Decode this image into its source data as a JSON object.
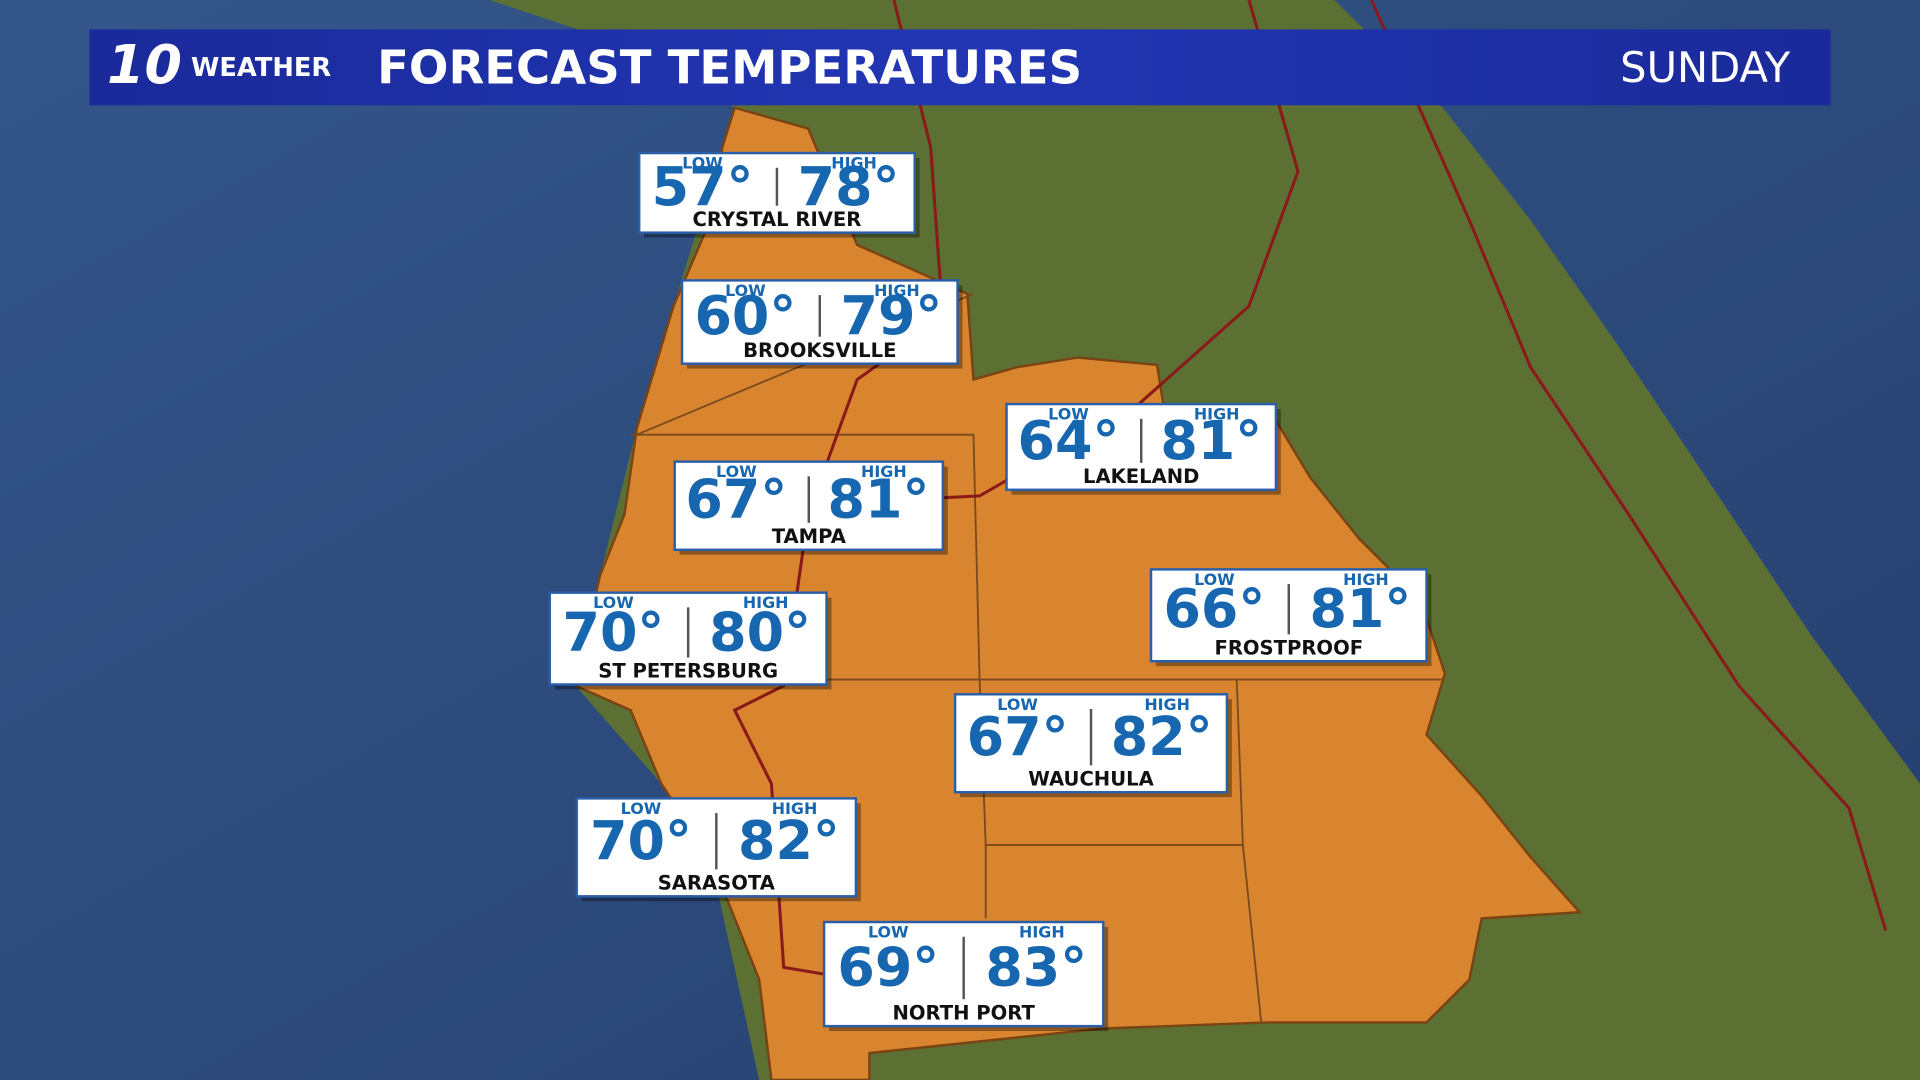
{
  "header": {
    "logo_number": "10",
    "logo_text": "WEATHER",
    "title": "FORECAST TEMPERATURES",
    "day": "SUNDAY"
  },
  "cities": [
    {
      "name": "CRYSTAL RIVER",
      "low_label": "LOW",
      "low": "57°",
      "high_label": "HIGH",
      "high": "78°"
    },
    {
      "name": "BROOKSVILLE",
      "low_label": "LOW",
      "low": "60°",
      "high_label": "HIGH",
      "high": "79°"
    },
    {
      "name": "TAMPA",
      "low_label": "LOW",
      "low": "67°",
      "high_label": "HIGH",
      "high": "81°"
    },
    {
      "name": "ST PETERSBURG",
      "low_label": "LOW",
      "low": "70°",
      "high_label": "HIGH",
      "high": "80°"
    },
    {
      "name": "LAKELAND",
      "low_label": "LOW",
      "low": "64°",
      "high_label": "HIGH",
      "high": "81°"
    },
    {
      "name": "FROSTPROOF",
      "low_label": "LOW",
      "low": "66°",
      "high_label": "HIGH",
      "high": "81°"
    },
    {
      "name": "WAUCHULA",
      "low_label": "LOW",
      "low": "67°",
      "high_label": "HIGH",
      "high": "82°"
    },
    {
      "name": "SARASOTA",
      "low_label": "LOW",
      "low": "70°",
      "high_label": "HIGH",
      "high": "82°"
    },
    {
      "name": "NORTH PORT",
      "low_label": "LOW",
      "low": "69°",
      "high_label": "HIGH",
      "high": "83°"
    }
  ]
}
